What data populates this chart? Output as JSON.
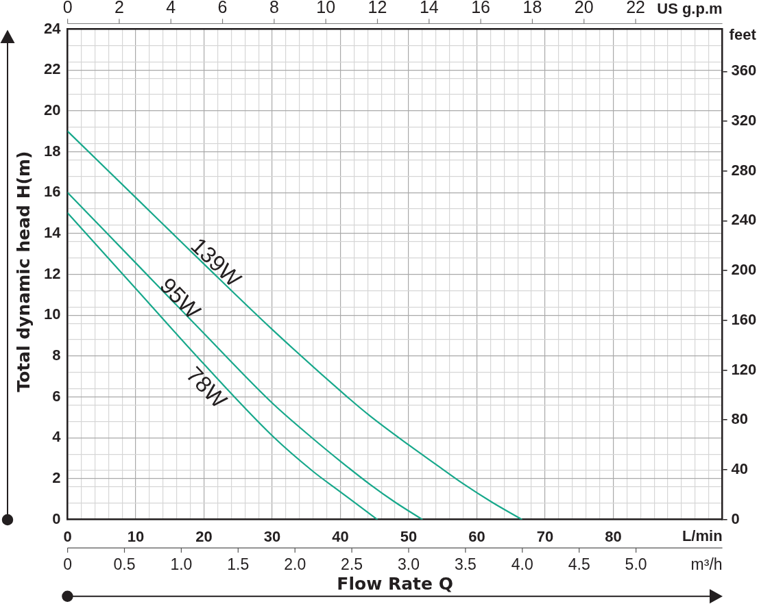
{
  "chart_data": {
    "type": "line",
    "xlabel": "Flow Rate Q",
    "ylabel": "Total dynamic head H(m)",
    "x2label": "US g.p.m",
    "y2label": "feet",
    "annotations": [
      "L/min",
      "m³/h",
      "0",
      "0.5",
      "1.0",
      "1.5",
      "2.0",
      "2.5",
      "3.0",
      "3.5",
      "4.0",
      "4.5",
      "5.0"
    ],
    "xlim": [
      0,
      96
    ],
    "xticks": [
      0,
      {
        "value": 2,
        "label": null
      },
      {
        "value": 4,
        "label": null
      },
      {
        "value": 6,
        "label": null
      },
      {
        "value": 8,
        "label": null
      },
      10,
      {
        "value": 12,
        "label": null
      },
      {
        "value": 14,
        "label": null
      },
      {
        "value": 16,
        "label": null
      },
      {
        "value": 18,
        "label": null
      },
      20,
      {
        "value": 22,
        "label": null
      },
      {
        "value": 24,
        "label": null
      },
      {
        "value": 26,
        "label": null
      },
      {
        "value": 28,
        "label": null
      },
      30,
      {
        "value": 32,
        "label": null
      },
      {
        "value": 34,
        "label": null
      },
      {
        "value": 36,
        "label": null
      },
      {
        "value": 38,
        "label": null
      },
      40,
      {
        "value": 42,
        "label": null
      },
      {
        "value": 44,
        "label": null
      },
      {
        "value": 46,
        "label": null
      },
      {
        "value": 48,
        "label": null
      },
      50,
      {
        "value": 52,
        "label": null
      },
      {
        "value": 54,
        "label": null
      },
      {
        "value": 56,
        "label": null
      },
      {
        "value": 58,
        "label": null
      },
      60,
      {
        "value": 62,
        "label": null
      },
      {
        "value": 64,
        "label": null
      },
      {
        "value": 66,
        "label": null
      },
      {
        "value": 68,
        "label": null
      },
      70,
      {
        "value": 72,
        "label": null
      },
      {
        "value": 74,
        "label": null
      },
      {
        "value": 76,
        "label": null
      },
      {
        "value": 78,
        "label": null
      },
      80,
      {
        "value": 82,
        "label": null
      },
      {
        "value": 84,
        "label": null
      },
      {
        "value": 86,
        "label": null
      },
      {
        "value": 88,
        "label": null
      },
      {
        "value": 90,
        "label": null
      },
      {
        "value": 92,
        "label": null
      },
      {
        "value": 94,
        "label": null
      }
    ],
    "ylim": [
      0,
      24
    ],
    "yticks": [
      0,
      {
        "value": 0.8,
        "label": null
      },
      {
        "value": 1.6,
        "label": null
      },
      2,
      {
        "value": 2.4,
        "label": null
      },
      {
        "value": 3.2,
        "label": null
      },
      4,
      {
        "value": 4.8,
        "label": null
      },
      {
        "value": 5.6,
        "label": null
      },
      6,
      {
        "value": 6.4,
        "label": null
      },
      {
        "value": 7.2,
        "label": null
      },
      8,
      {
        "value": 8.8,
        "label": null
      },
      {
        "value": 9.6,
        "label": null
      },
      10,
      {
        "value": 10.4,
        "label": null
      },
      {
        "value": 11.2,
        "label": null
      },
      12,
      {
        "value": 12.8,
        "label": null
      },
      {
        "value": 13.6,
        "label": null
      },
      14,
      {
        "value": 14.4,
        "label": null
      },
      {
        "value": 15.2,
        "label": null
      },
      16,
      {
        "value": 16.8,
        "label": null
      },
      {
        "value": 17.6,
        "label": null
      },
      18,
      {
        "value": 18.4,
        "label": null
      },
      {
        "value": 19.2,
        "label": null
      },
      20,
      {
        "value": 20.8,
        "label": null
      },
      {
        "value": 21.6,
        "label": null
      },
      22,
      {
        "value": 22.4,
        "label": null
      },
      {
        "value": 23.2,
        "label": null
      },
      24
    ],
    "x2lim": [
      0,
      25.36
    ],
    "x2ticks": [
      0,
      2,
      4,
      6,
      8,
      10,
      12,
      14,
      16,
      18,
      20,
      22
    ],
    "y2lim": [
      0,
      394
    ],
    "y2ticks": [
      0,
      40,
      80,
      120,
      160,
      200,
      240,
      280,
      320,
      360
    ],
    "grid": true,
    "marker": "none",
    "line_style": "solid",
    "series": [
      {
        "name": "139W",
        "color": "#17a88b",
        "x": [
          0,
          10,
          20,
          30,
          41,
          44.4,
          50,
          54.2,
          58,
          62.2,
          66.6
        ],
        "values": [
          19,
          15.75,
          12.5,
          9.3,
          6.0,
          5.05,
          3.65,
          2.65,
          1.75,
          0.85,
          0
        ]
      },
      {
        "name": "95W",
        "color": "#17a88b",
        "x": [
          0,
          10,
          20,
          30,
          36,
          40,
          44.4,
          48,
          52
        ],
        "values": [
          16,
          12.55,
          9.1,
          5.7,
          3.95,
          2.85,
          1.7,
          0.85,
          0
        ]
      },
      {
        "name": "78W",
        "color": "#17a88b",
        "x": [
          0,
          10,
          20,
          30,
          36,
          40,
          45.4
        ],
        "values": [
          15,
          11.3,
          7.6,
          4.1,
          2.35,
          1.35,
          0
        ]
      }
    ]
  }
}
